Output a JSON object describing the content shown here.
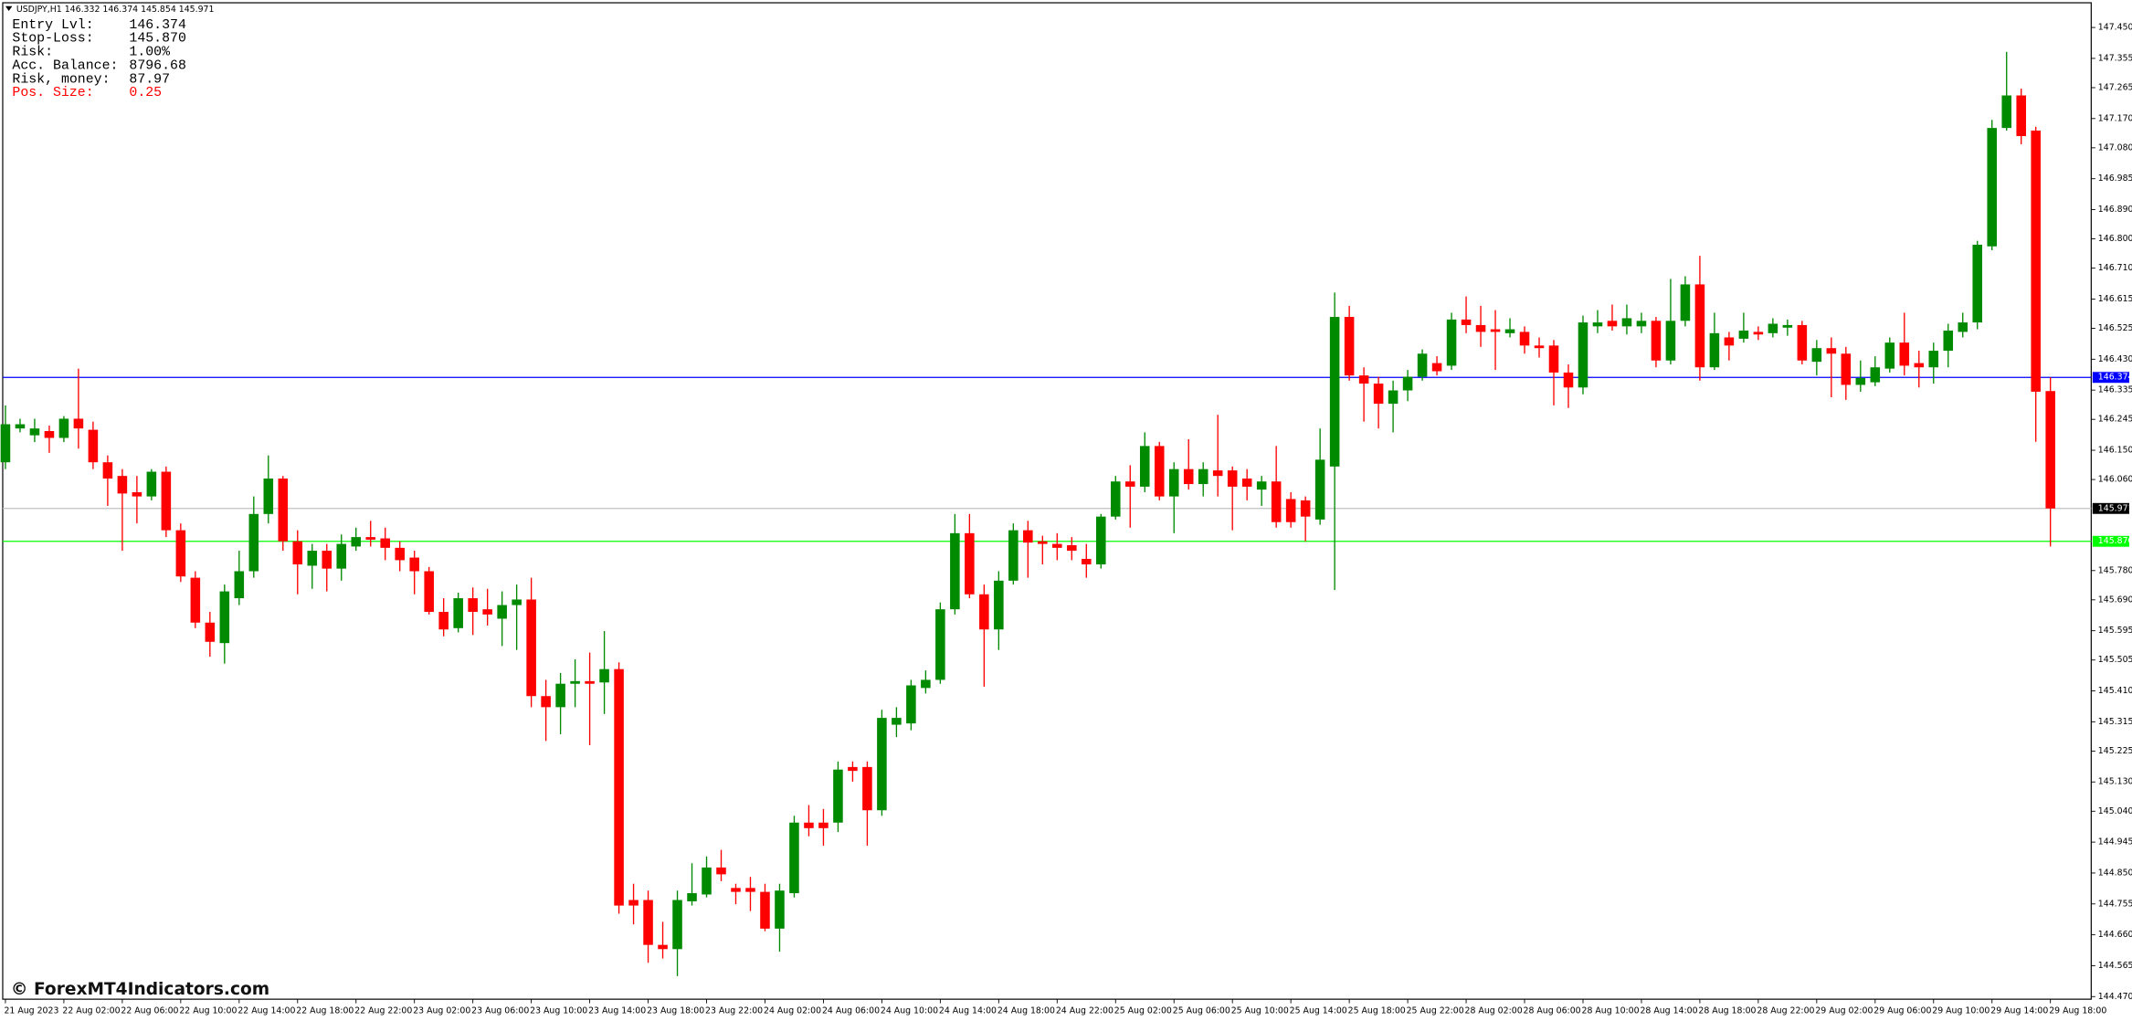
{
  "chart_data": {
    "type": "candlestick",
    "title": "USDJPY,H1  146.332 146.374 145.854 145.971",
    "x": [
      "21 Aug 2023",
      null,
      null,
      null,
      "22 Aug 02:00",
      null,
      null,
      null,
      "22 Aug 06:00",
      null,
      null,
      null,
      "22 Aug 10:00",
      null,
      null,
      null,
      "22 Aug 14:00",
      null,
      null,
      null,
      "22 Aug 18:00",
      null,
      null,
      null,
      "22 Aug 22:00",
      null,
      null,
      null,
      "23 Aug 02:00",
      null,
      null,
      null,
      "23 Aug 06:00",
      null,
      null,
      null,
      "23 Aug 10:00",
      null,
      null,
      null,
      "23 Aug 14:00",
      null,
      null,
      null,
      "23 Aug 18:00",
      null,
      null,
      null,
      "23 Aug 22:00",
      null,
      null,
      null,
      "24 Aug 02:00",
      null,
      null,
      null,
      "24 Aug 06:00",
      null,
      null,
      null,
      "24 Aug 10:00",
      null,
      null,
      null,
      "24 Aug 14:00",
      null,
      null,
      null,
      "24 Aug 18:00",
      null,
      null,
      null,
      "24 Aug 22:00",
      null,
      null,
      null,
      "25 Aug 02:00",
      null,
      null,
      null,
      "25 Aug 06:00",
      null,
      null,
      null,
      "25 Aug 10:00",
      null,
      null,
      null,
      "25 Aug 14:00",
      null,
      null,
      null,
      "25 Aug 18:00",
      null,
      null,
      null,
      "25 Aug 22:00",
      null,
      null,
      null,
      "28 Aug 02:00",
      null,
      null,
      null,
      "28 Aug 06:00",
      null,
      null,
      null,
      "28 Aug 10:00",
      null,
      null,
      null,
      "28 Aug 14:00",
      null,
      null,
      null,
      "28 Aug 18:00",
      null,
      null,
      null,
      "28 Aug 22:00",
      null,
      null,
      null,
      "29 Aug 02:00",
      null,
      null,
      null,
      "29 Aug 06:00",
      null,
      null,
      null,
      "29 Aug 10:00",
      null,
      null,
      null,
      "29 Aug 14:00",
      null,
      null,
      null,
      "29 Aug 18:00"
    ],
    "open": [
      146.113,
      146.217,
      146.196,
      146.209,
      146.188,
      146.247,
      146.213,
      146.113,
      146.071,
      146.021,
      146.008,
      146.084,
      145.904,
      145.758,
      145.62,
      145.557,
      145.695,
      145.778,
      145.954,
      146.063,
      145.87,
      145.795,
      145.841,
      145.786,
      145.854,
      145.883,
      145.879,
      145.85,
      145.82,
      145.778,
      145.653,
      145.603,
      145.695,
      145.661,
      145.632,
      145.674,
      145.691,
      145.394,
      145.36,
      145.432,
      145.44,
      145.436,
      145.477,
      144.767,
      144.767,
      144.629,
      144.616,
      144.763,
      144.784,
      144.867,
      144.804,
      144.804,
      144.792,
      144.679,
      144.788,
      145.005,
      145.005,
      145.005,
      145.176,
      145.176,
      145.043,
      145.306,
      145.31,
      145.419,
      145.444,
      145.661,
      145.895,
      145.707,
      145.599,
      145.749,
      145.904,
      145.87,
      145.862,
      145.858,
      145.816,
      145.799,
      145.946,
      146.054,
      146.038,
      146.163,
      146.008,
      146.092,
      146.046,
      146.088,
      146.088,
      146.063,
      146.029,
      146.054,
      146.0,
      145.996,
      145.937,
      146.1,
      146.56,
      146.38,
      146.355,
      146.293,
      146.334,
      146.376,
      146.418,
      146.41,
      146.552,
      146.535,
      146.522,
      146.51,
      146.514,
      146.472,
      146.472,
      146.389,
      146.343,
      146.531,
      146.548,
      146.531,
      146.531,
      146.548,
      146.426,
      146.548,
      146.66,
      146.405,
      146.497,
      146.493,
      146.514,
      146.51,
      146.527,
      146.535,
      146.422,
      146.464,
      146.447,
      146.351,
      146.359,
      146.401,
      146.481,
      146.418,
      146.405,
      146.456,
      146.514,
      146.543,
      146.777,
      147.141,
      147.241,
      147.133,
      146.332
    ],
    "high": [
      146.288,
      146.247,
      146.247,
      146.226,
      146.255,
      146.401,
      146.238,
      146.134,
      146.092,
      146.071,
      146.092,
      146.1,
      145.925,
      145.778,
      145.653,
      145.737,
      145.841,
      146.008,
      146.134,
      146.071,
      145.904,
      145.862,
      145.862,
      145.891,
      145.912,
      145.933,
      145.912,
      145.87,
      145.841,
      145.791,
      145.695,
      145.712,
      145.728,
      145.724,
      145.716,
      145.737,
      145.758,
      145.444,
      145.465,
      145.507,
      145.528,
      145.594,
      145.498,
      144.817,
      144.796,
      144.7,
      144.796,
      144.88,
      144.901,
      144.921,
      144.817,
      144.838,
      144.817,
      144.817,
      145.026,
      145.059,
      145.047,
      145.193,
      145.193,
      145.193,
      145.352,
      145.36,
      145.444,
      145.473,
      145.682,
      145.954,
      145.954,
      145.737,
      145.778,
      145.925,
      145.933,
      145.887,
      145.895,
      145.883,
      145.862,
      145.954,
      146.071,
      146.104,
      146.205,
      146.176,
      146.113,
      146.184,
      146.113,
      146.259,
      146.1,
      146.092,
      146.071,
      146.163,
      146.021,
      146.008,
      146.217,
      146.635,
      146.594,
      146.405,
      146.376,
      146.364,
      146.397,
      146.46,
      146.439,
      146.573,
      146.623,
      146.594,
      146.581,
      146.556,
      146.531,
      146.497,
      146.489,
      146.414,
      146.564,
      146.581,
      146.598,
      146.598,
      146.573,
      146.56,
      146.677,
      146.685,
      146.748,
      146.573,
      146.514,
      146.573,
      146.531,
      146.556,
      146.552,
      146.548,
      146.489,
      146.497,
      146.468,
      146.426,
      146.439,
      146.497,
      146.573,
      146.456,
      146.481,
      146.539,
      146.573,
      146.794,
      147.166,
      147.375,
      147.262,
      147.145,
      146.374
    ],
    "low": [
      146.092,
      146.205,
      146.175,
      146.142,
      146.175,
      146.155,
      146.092,
      145.979,
      145.841,
      145.925,
      145.996,
      145.883,
      145.745,
      145.603,
      145.515,
      145.494,
      145.674,
      145.758,
      145.925,
      145.841,
      145.707,
      145.724,
      145.716,
      145.749,
      145.841,
      145.854,
      145.812,
      145.778,
      145.707,
      145.645,
      145.578,
      145.59,
      145.582,
      145.611,
      145.548,
      145.536,
      145.36,
      145.256,
      145.277,
      145.36,
      145.243,
      145.339,
      144.725,
      144.692,
      144.574,
      144.587,
      144.533,
      144.75,
      144.775,
      144.825,
      144.754,
      144.733,
      144.671,
      144.608,
      144.775,
      144.963,
      144.934,
      144.976,
      145.131,
      144.934,
      145.026,
      145.268,
      145.289,
      145.402,
      145.432,
      145.645,
      145.695,
      145.423,
      145.536,
      145.737,
      145.758,
      145.799,
      145.812,
      145.812,
      145.758,
      145.786,
      145.937,
      145.912,
      146.021,
      145.996,
      145.895,
      146.029,
      146.008,
      146.008,
      145.904,
      145.996,
      145.979,
      145.912,
      145.912,
      145.87,
      145.921,
      145.72,
      146.364,
      146.238,
      146.217,
      146.205,
      146.301,
      146.364,
      146.38,
      146.397,
      146.51,
      146.468,
      146.397,
      146.497,
      146.447,
      146.435,
      146.288,
      146.28,
      146.322,
      146.51,
      146.518,
      146.506,
      146.51,
      146.405,
      146.414,
      146.531,
      146.364,
      146.397,
      146.426,
      146.481,
      146.489,
      146.497,
      146.502,
      146.414,
      146.38,
      146.313,
      146.305,
      146.33,
      146.347,
      146.389,
      146.38,
      146.343,
      146.355,
      146.405,
      146.497,
      146.522,
      146.765,
      147.133,
      147.091,
      146.176,
      145.854
    ],
    "close": [
      146.23,
      146.23,
      146.217,
      146.188,
      146.247,
      146.217,
      146.113,
      146.063,
      146.017,
      146.008,
      146.084,
      145.904,
      145.762,
      145.62,
      145.561,
      145.716,
      145.778,
      145.954,
      146.063,
      145.87,
      145.799,
      145.841,
      145.786,
      145.862,
      145.883,
      145.875,
      145.85,
      145.812,
      145.778,
      145.653,
      145.599,
      145.695,
      145.653,
      145.645,
      145.674,
      145.691,
      145.394,
      145.36,
      145.432,
      145.44,
      145.432,
      145.477,
      144.75,
      144.75,
      144.629,
      144.616,
      144.767,
      144.788,
      144.867,
      144.846,
      144.792,
      144.792,
      144.679,
      144.796,
      145.005,
      144.988,
      144.988,
      145.168,
      145.164,
      145.043,
      145.327,
      145.327,
      145.427,
      145.444,
      145.661,
      145.895,
      145.707,
      145.599,
      145.749,
      145.904,
      145.866,
      145.862,
      145.85,
      145.841,
      145.799,
      145.946,
      146.054,
      146.038,
      146.163,
      146.008,
      146.092,
      146.046,
      146.092,
      146.071,
      146.038,
      146.038,
      146.054,
      145.929,
      145.929,
      145.946,
      146.121,
      146.56,
      146.38,
      146.355,
      146.293,
      146.334,
      146.376,
      146.447,
      146.393,
      146.552,
      146.535,
      146.514,
      146.514,
      146.522,
      146.472,
      146.464,
      146.389,
      146.343,
      146.543,
      146.543,
      146.531,
      146.556,
      146.548,
      146.426,
      146.548,
      146.66,
      146.405,
      146.51,
      146.472,
      146.518,
      146.506,
      146.539,
      146.535,
      146.426,
      146.464,
      146.447,
      146.351,
      146.372,
      146.405,
      146.481,
      146.41,
      146.405,
      146.456,
      146.518,
      146.543,
      146.782,
      147.141,
      147.241,
      147.116,
      146.33,
      145.971
    ],
    "up_color": "#008a00",
    "down_color": "#ff0000",
    "ylim": [
      144.462,
      147.526
    ],
    "yticks": [
      {
        "value": 147.45,
        "label": "147.450"
      },
      147.355,
      147.265,
      {
        "value": 147.17,
        "label": "147.170"
      },
      {
        "value": 147.08,
        "label": "147.080"
      },
      146.985,
      {
        "value": 146.89,
        "label": "146.890"
      },
      {
        "value": 146.8,
        "label": "146.800"
      },
      {
        "value": 146.71,
        "label": "146.710"
      },
      146.615,
      146.525,
      {
        "value": 146.43,
        "label": "146.430"
      },
      146.335,
      146.245,
      {
        "value": 146.15,
        "label": "146.150"
      },
      {
        "value": 146.06,
        "label": "146.060"
      },
      {
        "value": 145.78,
        "label": "145.780"
      },
      {
        "value": 145.69,
        "label": "145.690"
      },
      145.595,
      145.505,
      {
        "value": 145.41,
        "label": "145.410"
      },
      145.315,
      145.225,
      {
        "value": 145.13,
        "label": "145.130"
      },
      {
        "value": 145.04,
        "label": "145.040"
      },
      144.945,
      {
        "value": 144.85,
        "label": "144.850"
      },
      144.755,
      {
        "value": 144.66,
        "label": "144.660"
      },
      144.565,
      {
        "value": 144.47,
        "label": "144.470"
      }
    ],
    "hlines": [
      {
        "value": 146.374,
        "color": "#0000ff",
        "tag_color": "#0000ff"
      },
      {
        "value": 145.971,
        "color": "#c0c0c0",
        "tag_color": "#000000"
      },
      {
        "value": 145.87,
        "label": "145.870",
        "color": "#00ff00",
        "tag_color": "#00ff00"
      }
    ],
    "annotations": [
      {
        "label": "Entry Lvl:",
        "value": "146.374",
        "color": "#000000"
      },
      {
        "label": "Stop-Loss:",
        "value": "145.870",
        "color": "#000000"
      },
      {
        "label": "Risk:",
        "value": "1.00%",
        "color": "#000000"
      },
      {
        "label": "Acc. Balance:",
        "value": "8796.68",
        "color": "#000000"
      },
      {
        "label": "Risk, money:",
        "value": "87.97",
        "color": "#000000"
      },
      {
        "label": "Pos. Size:",
        "value": "0.25",
        "color": "#ff0000"
      }
    ],
    "watermark": "© ForexMT4Indicators.com"
  }
}
